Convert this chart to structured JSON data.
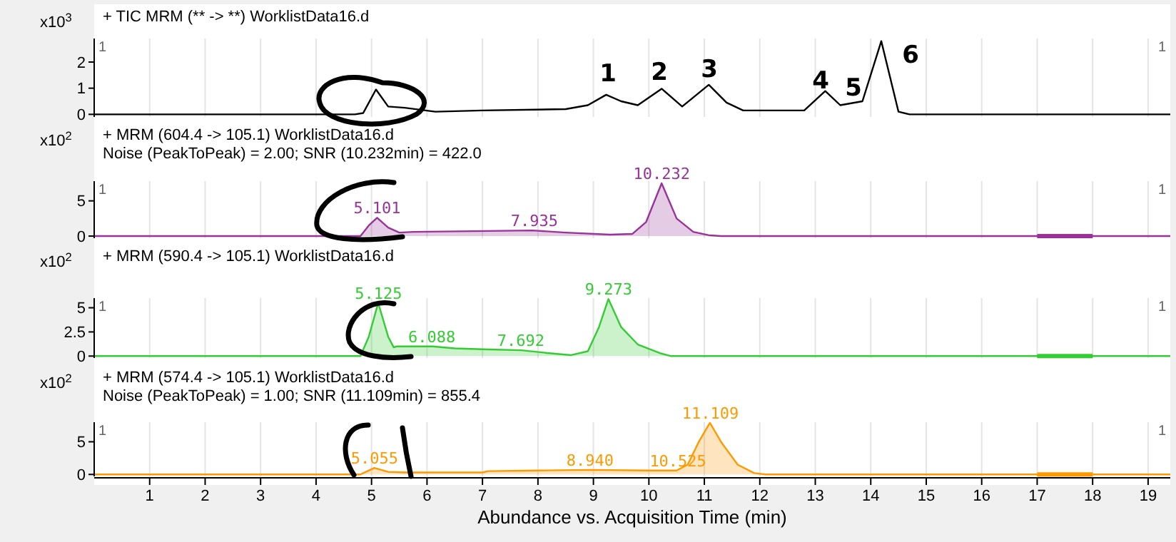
{
  "chart_data": [
    {
      "type": "line",
      "title": "+ TIC MRM (** -> **) WorklistData16.d",
      "ylabel": "x10$^{3}$",
      "x": [
        0,
        4.7,
        4.85,
        5.08,
        5.3,
        5.6,
        6.15,
        7,
        8.5,
        8.9,
        9.23,
        9.5,
        9.8,
        10.23,
        10.6,
        11.08,
        11.4,
        11.7,
        12.8,
        13.18,
        13.45,
        13.85,
        14.19,
        14.5,
        14.7,
        19.4
      ],
      "series": [
        {
          "color": "#000000",
          "values": [
            0,
            0,
            0.05,
            0.95,
            0.3,
            0.25,
            0.1,
            0.15,
            0.2,
            0.35,
            0.75,
            0.5,
            0.35,
            0.98,
            0.3,
            1.13,
            0.45,
            0.15,
            0.15,
            0.89,
            0.35,
            0.5,
            2.8,
            0.1,
            0,
            0
          ]
        }
      ],
      "xlim": [
        0,
        19.4
      ],
      "ylim": [
        -0.1,
        2.9
      ],
      "xticks": [
        1,
        2,
        3,
        4,
        5,
        6,
        7,
        8,
        9,
        10,
        11,
        12,
        13,
        14,
        15,
        16,
        17,
        18,
        19
      ],
      "yticks": [
        0,
        1,
        2
      ],
      "tick_labels": "y",
      "grid": "x",
      "annotations": [
        "1",
        "1",
        "1",
        "2",
        "3",
        "4",
        "5",
        "6"
      ]
    },
    {
      "type": "area",
      "title": "+ MRM (604.4 -> 105.1) WorklistData16.d",
      "subtitle": "Noise (PeakToPeak) = 2.00; SNR (10.232min) = 422.0",
      "ylabel": "x10$^{2}$",
      "x": [
        0,
        4.8,
        4.95,
        5.1,
        5.3,
        5.5,
        5.75,
        7.9,
        8.5,
        9.3,
        9.7,
        9.95,
        10.23,
        10.5,
        10.8,
        11.1,
        11.3,
        19.4
      ],
      "series": [
        {
          "color": "#993399",
          "values": [
            0,
            0,
            1.5,
            2.6,
            1.2,
            0.5,
            0.6,
            0.8,
            0.5,
            0.2,
            0.3,
            2,
            7.5,
            2.5,
            0.6,
            0.1,
            0,
            0
          ]
        }
      ],
      "xlim": [
        0,
        19.4
      ],
      "ylim": [
        -0.3,
        7.8
      ],
      "xticks": [
        1,
        2,
        3,
        4,
        5,
        6,
        7,
        8,
        9,
        10,
        11,
        12,
        13,
        14,
        15,
        16,
        17,
        18,
        19
      ],
      "yticks": [
        0,
        5
      ],
      "tick_labels": "y",
      "grid": "x",
      "bands": [
        {
          "axis": "x",
          "from": 17,
          "to": 18,
          "color": "#993399"
        }
      ],
      "annotations": [
        "1",
        "1",
        {
          "text": "5.101",
          "x": 5.101,
          "y": 2.6
        },
        {
          "text": "7.935",
          "x": 7.935,
          "y": 0.8
        },
        {
          "text": "10.232",
          "x": 10.232,
          "y": 7.5
        }
      ]
    },
    {
      "type": "area",
      "title": "+ MRM (590.4 -> 105.1) WorklistData16.d",
      "ylabel": "x10$^{2}$",
      "x": [
        0,
        4.8,
        4.95,
        5.12,
        5.3,
        5.4,
        5.45,
        6.1,
        6.5,
        7,
        7.7,
        8.2,
        8.6,
        8.9,
        9.1,
        9.27,
        9.5,
        9.8,
        10.2,
        10.4,
        19.4
      ],
      "series": [
        {
          "color": "#33cc33",
          "values": [
            0,
            0,
            2,
            5.5,
            2,
            0.9,
            1,
            1,
            0.8,
            0.7,
            0.6,
            0.3,
            0.1,
            0.5,
            3,
            5.9,
            3,
            1.2,
            0.3,
            0,
            0
          ]
        }
      ],
      "xlim": [
        0,
        19.4
      ],
      "ylim": [
        -0.2,
        6
      ],
      "xticks": [
        1,
        2,
        3,
        4,
        5,
        6,
        7,
        8,
        9,
        10,
        11,
        12,
        13,
        14,
        15,
        16,
        17,
        18,
        19
      ],
      "yticks": [
        0,
        2.5,
        5
      ],
      "tick_labels": "y",
      "grid": "x",
      "bands": [
        {
          "axis": "x",
          "from": 17,
          "to": 18,
          "color": "#33cc33"
        }
      ],
      "annotations": [
        "1",
        "1",
        {
          "text": "5.125",
          "x": 5.125,
          "y": 5.5
        },
        {
          "text": "6.088",
          "x": 6.088,
          "y": 1
        },
        {
          "text": "7.692",
          "x": 7.692,
          "y": 0.6
        },
        {
          "text": "9.273",
          "x": 9.273,
          "y": 5.9
        }
      ]
    },
    {
      "type": "area",
      "title": "+ MRM (574.4 -> 105.1) WorklistData16.d",
      "subtitle": "Noise (PeakToPeak) = 1.00; SNR (11.109min) = 855.4",
      "xlabel": "Abundance vs. Acquisition Time (min)",
      "ylabel": "x10$^{2}$",
      "x": [
        0,
        4.8,
        5.05,
        5.3,
        5.6,
        7,
        7.1,
        8,
        8.94,
        10,
        10.5,
        10.7,
        10.9,
        11.1,
        11.3,
        11.6,
        11.9,
        12.1,
        19.4
      ],
      "series": [
        {
          "color": "#ff9900",
          "values": [
            0,
            0,
            1,
            0.4,
            0.3,
            0.3,
            0.5,
            0.6,
            0.7,
            0.6,
            0.6,
            1.5,
            5,
            7.9,
            5,
            1.5,
            0.2,
            0,
            0
          ]
        }
      ],
      "xlim": [
        0,
        19.4
      ],
      "ylim": [
        -0.3,
        8
      ],
      "xticks": [
        1,
        2,
        3,
        4,
        5,
        6,
        7,
        8,
        9,
        10,
        11,
        12,
        13,
        14,
        15,
        16,
        17,
        18,
        19
      ],
      "yticks": [
        0,
        5
      ],
      "grid": "x",
      "bands": [
        {
          "axis": "x",
          "from": 17,
          "to": 18,
          "color": "#ff9900"
        }
      ],
      "annotations": [
        "1",
        "1",
        {
          "text": "5.055",
          "x": 5.055,
          "y": 1
        },
        {
          "text": "8.940",
          "x": 8.94,
          "y": 0.7
        },
        {
          "text": "10.525",
          "x": 10.525,
          "y": 0.6
        },
        {
          "text": "11.109",
          "x": 11.109,
          "y": 7.9
        }
      ]
    }
  ]
}
